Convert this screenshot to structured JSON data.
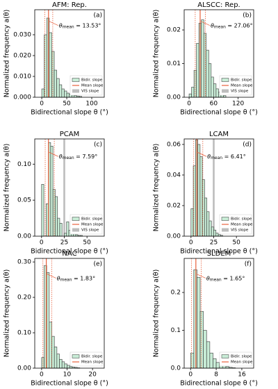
{
  "chart_data": [
    {
      "type": "histogram",
      "title": "AFM: Rep.",
      "panel": "(a)",
      "xlabel": "Bidirectional slope θ (°)",
      "ylabel": "Normalized frequency a(θ)",
      "bins": [
        0,
        5,
        10,
        15,
        20,
        25,
        30,
        35,
        40,
        45,
        50,
        55,
        60,
        65,
        70,
        75,
        80
      ],
      "values": [
        0.004,
        0.03,
        0.038,
        0.031,
        0.022,
        0.013,
        0.009,
        0.006,
        0.004,
        0.003,
        0.002,
        0.0015,
        0.001,
        0.0008,
        0.0006,
        0.0004
      ],
      "color": "#c8ecd6",
      "hist_name": "Bidir. slope",
      "mean": {
        "value": 13.53,
        "label": " = 13.53°"
      },
      "mean_symbol": "θ",
      "mean_subscript": "mean",
      "mean_name": "Mean slope",
      "mean_color": "#e8603c",
      "sd_range": [
        6,
        22
      ],
      "vis_name": "VIS slope",
      "vis_color": "#bdbdbd",
      "xlim": [
        -14,
        125
      ],
      "xticks": [
        0,
        50,
        100
      ],
      "ylim": [
        0,
        0.042
      ],
      "yticks": [
        {
          "value": 0,
          "label": "0.000"
        },
        {
          "value": 0.01,
          "label": "0.010"
        },
        {
          "value": 0.02,
          "label": "0.020"
        },
        {
          "value": 0.03,
          "label": "0.030"
        }
      ]
    },
    {
      "type": "histogram",
      "title": "ALSCC: Rep.",
      "panel": "(b)",
      "xlabel": "Bidirectional slope θ (°)",
      "ylabel": "Normalized frequency a(θ)",
      "bins": [
        0,
        6,
        12,
        18,
        24,
        30,
        36,
        42,
        48,
        54,
        60,
        66,
        72,
        78,
        84,
        90
      ],
      "values": [
        0.001,
        0.003,
        0.008,
        0.016,
        0.022,
        0.023,
        0.019,
        0.014,
        0.01,
        0.006,
        0.004,
        0.0025,
        0.0015,
        0.001,
        0.0005
      ],
      "color": "#c8ecd6",
      "hist_name": "Bidir. slope",
      "mean": {
        "value": 27.06,
        "label": " = 27.06°"
      },
      "mean_symbol": "θ",
      "mean_subscript": "mean",
      "mean_name": "Mean slope",
      "mean_color": "#e8603c",
      "sd_range": [
        15,
        40
      ],
      "vis_name": "VIS slope",
      "vis_color": "#bdbdbd",
      "xlim": [
        -12,
        158
      ],
      "xticks": [
        0,
        60,
        120
      ],
      "ylim": [
        0,
        0.026
      ],
      "yticks": [
        {
          "value": 0,
          "label": "0.00"
        },
        {
          "value": 0.01,
          "label": "0.01"
        },
        {
          "value": 0.02,
          "label": "0.02"
        }
      ]
    },
    {
      "type": "histogram",
      "title": "PCAM",
      "panel": "(c)",
      "xlabel": "Bidirectional slope θ (°)",
      "ylabel": "Normalized frequency a(θ)",
      "bins": [
        0,
        2.5,
        5,
        7.5,
        10,
        12.5,
        15,
        17.5,
        20,
        22.5,
        25,
        27.5,
        30,
        32.5,
        35,
        37.5,
        40,
        42.5,
        45
      ],
      "values": [
        0.072,
        0,
        0.045,
        0.13,
        0.125,
        0.065,
        0.055,
        0.025,
        0.018,
        0,
        0.004,
        0.02,
        0.008,
        0.004,
        0.003,
        0.002,
        0.001,
        0.001
      ],
      "color": "#c8ecd6",
      "hist_name": "Bidir. slope",
      "mean": {
        "value": 7.59,
        "label": " = 7.59°"
      },
      "mean_symbol": "θ",
      "mean_subscript": "mean",
      "mean_name": "Mean slope",
      "mean_color": "#e8603c",
      "sd_range": [
        4,
        14
      ],
      "vis": [
        24,
        26
      ],
      "vis_name": "VIS slope",
      "vis_color": "#bdbdbd",
      "xlim": [
        -7.5,
        69
      ],
      "xticks": [
        0,
        25,
        50
      ],
      "ylim": [
        0,
        0.135
      ],
      "yticks": [
        {
          "value": 0,
          "label": "0.00"
        },
        {
          "value": 0.05,
          "label": "0.05"
        },
        {
          "value": 0.1,
          "label": "0.10"
        }
      ]
    },
    {
      "type": "histogram",
      "title": "LCAM",
      "panel": "(d)",
      "xlabel": "Bidirectional slope θ (°)",
      "ylabel": "Normalized frequency a(θ)",
      "bins": [
        0,
        2.5,
        5,
        7.5,
        10,
        12.5,
        15,
        17.5,
        20,
        22.5,
        25,
        27.5,
        30,
        32.5,
        35
      ],
      "values": [
        0.018,
        0.046,
        0.063,
        0.06,
        0.052,
        0.037,
        0.025,
        0.016,
        0.01,
        0.006,
        0.004,
        0.002,
        0.001,
        0.0005
      ],
      "color": "#c8ecd6",
      "hist_name": "Bidir. slope",
      "mean": {
        "value": 6.41,
        "label": " = 6.41°"
      },
      "mean_symbol": "θ",
      "mean_subscript": "mean",
      "mean_name": "Mean slope",
      "mean_color": "#e8603c",
      "sd_range": [
        3,
        13
      ],
      "vis": [
        24,
        26
      ],
      "vis_name": "VIS slope",
      "vis_color": "#bdbdbd",
      "xlim": [
        -7.5,
        69
      ],
      "xticks": [
        0,
        25,
        50
      ],
      "ylim": [
        0,
        0.0636
      ],
      "yticks": [
        {
          "value": 0,
          "label": "0.00"
        },
        {
          "value": 0.02,
          "label": "0.02"
        },
        {
          "value": 0.04,
          "label": "0.04"
        },
        {
          "value": 0.06,
          "label": "0.06"
        }
      ]
    },
    {
      "type": "histogram",
      "title": "NAC",
      "panel": "(e)",
      "xlabel": "Bidirectional slope θ (°)",
      "ylabel": "Normalized frequency a(θ)",
      "bins": [
        0,
        1,
        2,
        3,
        4,
        5,
        6,
        7,
        8,
        9,
        10,
        11,
        12,
        13,
        14,
        15
      ],
      "values": [
        0.03,
        0.29,
        0.27,
        0.13,
        0.09,
        0.06,
        0.04,
        0.025,
        0.018,
        0.012,
        0.008,
        0.005,
        0.003,
        0.002,
        0.001
      ],
      "color": "#c8ecd6",
      "hist_name": "Bidir. slope",
      "mean": {
        "value": 1.83,
        "label": " = 1.83°"
      },
      "mean_symbol": "θ",
      "mean_subscript": "mean",
      "mean_name": "Mean slope",
      "mean_color": "#e8603c",
      "sd_range": [
        0.5,
        4
      ],
      "xlim": [
        -2.7,
        24.6
      ],
      "xticks": [
        0,
        10,
        20
      ],
      "ylim": [
        0,
        0.31
      ],
      "yticks": [
        {
          "value": 0,
          "label": "0.00"
        },
        {
          "value": 0.1,
          "label": "0.10"
        },
        {
          "value": 0.2,
          "label": "0.20"
        },
        {
          "value": 0.3,
          "label": "0.30"
        }
      ]
    },
    {
      "type": "histogram",
      "title": "SLDEM",
      "panel": "(f)",
      "xlabel": "Bidirectional slope θ (°)",
      "ylabel": "Normalized frequency a(θ)",
      "bins": [
        0,
        1,
        2,
        3,
        4,
        5,
        6,
        7,
        8,
        9,
        10,
        11,
        12,
        13,
        14
      ],
      "values": [
        0.04,
        0.26,
        0.24,
        0.15,
        0.1,
        0.07,
        0.04,
        0.025,
        0.015,
        0.01,
        0.006,
        0.004,
        0.002,
        0.001
      ],
      "color": "#c8ecd6",
      "hist_name": "Bidir. slope",
      "mean": {
        "value": 1.65,
        "label": " = 1.65°"
      },
      "mean_symbol": "θ",
      "mean_subscript": "mean",
      "mean_name": "Mean slope",
      "mean_color": "#e8603c",
      "sd_range": [
        0.3,
        3.3
      ],
      "xlim": [
        -2,
        19.7
      ],
      "xticks": [
        0,
        8,
        16
      ],
      "ylim": [
        0,
        0.29
      ],
      "yticks": [
        {
          "value": 0,
          "label": "0.0"
        },
        {
          "value": 0.1,
          "label": "0.1"
        },
        {
          "value": 0.2,
          "label": "0.2"
        }
      ]
    }
  ]
}
